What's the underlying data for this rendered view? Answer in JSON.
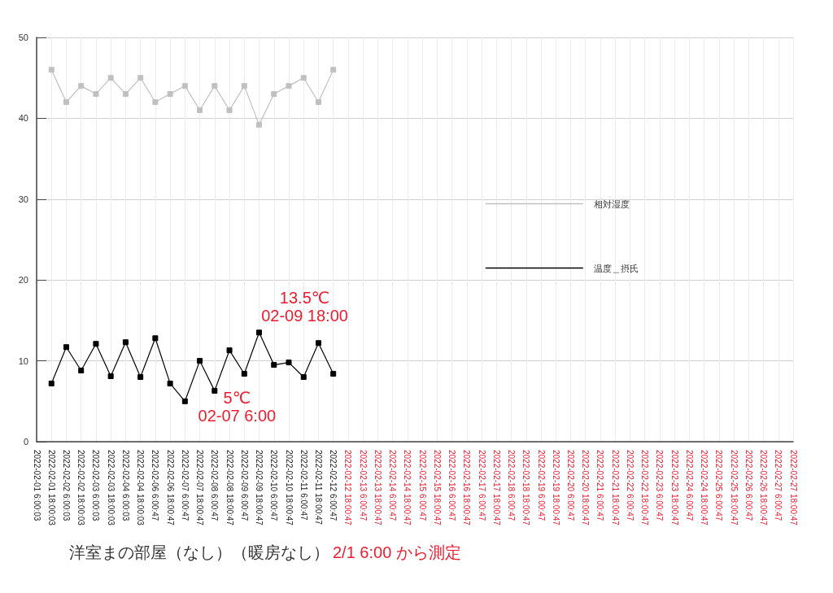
{
  "chart_data": {
    "type": "line",
    "title": "洋室まの部屋（なし）（暖房なし）",
    "subtitle": "2/1 6:00 から測定",
    "categories": [
      "2022-02-01 6:00:03",
      "2022-02-01 18:00:03",
      "2022-02-02 6:00:03",
      "2022-02-02 18:00:03",
      "2022-02-03 6:00:03",
      "2022-02-03 18:00:03",
      "2022-02-04 6:00:03",
      "2022-02-04 18:00:03",
      "2022-02-06 6:00:47",
      "2022-02-06 18:00:47",
      "2022-02-07 6:00:47",
      "2022-02-07 18:00:47",
      "2022-02-08 6:00:47",
      "2022-02-08 18:00:47",
      "2022-02-09 6:00:47",
      "2022-02-09 18:00:47",
      "2022-02-10 6:00:47",
      "2022-02-10 18:00:47",
      "2022-02-11 6:00:47",
      "2022-02-11 18:00:47",
      "2022-02-12 6:00:47",
      "2022-02-12 18:00:47",
      "2022-02-13 6:00:47",
      "2022-02-13 18:00:47",
      "2022-02-14 6:00:47",
      "2022-02-14 18:00:47",
      "2022-02-15 6:00:47",
      "2022-02-15 18:00:47",
      "2022-02-16 6:00:47",
      "2022-02-16 18:00:47",
      "2022-02-17 6:00:47",
      "2022-02-17 18:00:47",
      "2022-02-18 6:00:47",
      "2022-02-18 18:00:47",
      "2022-02-19 6:00:47",
      "2022-02-19 18:00:47",
      "2022-02-20 6:00:47",
      "2022-02-20 18:00:47",
      "2022-02-21 6:00:47",
      "2022-02-21 18:00:47",
      "2022-02-22 6:00:47",
      "2022-02-22 18:00:47",
      "2022-02-23 6:00:47",
      "2022-02-23 18:00:47",
      "2022-02-24 6:00:47",
      "2022-02-24 18:00:47",
      "2022-02-25 6:00:47",
      "2022-02-25 18:00:47",
      "2022-02-26 6:00:47",
      "2022-02-26 18:00:47",
      "2022-02-27 6:00:47",
      "2022-02-27 18:00:47"
    ],
    "series": [
      {
        "name": "相対湿度",
        "color": "#c0c0c0",
        "values": [
          null,
          46,
          42,
          44,
          43,
          45,
          43,
          45,
          42,
          43,
          44,
          41,
          44,
          41,
          44,
          39.2,
          43,
          44,
          45,
          42,
          46,
          null,
          null,
          null,
          null,
          null,
          null,
          null,
          null,
          null,
          null,
          null,
          null,
          null,
          null,
          null,
          null,
          null,
          null,
          null,
          null,
          null,
          null,
          null,
          null,
          null,
          null,
          null,
          null,
          null,
          null,
          null
        ]
      },
      {
        "name": "温度＿摂氏",
        "color": "#000000",
        "values": [
          null,
          7.2,
          11.7,
          8.8,
          12.1,
          8.1,
          12.3,
          8,
          12.8,
          7.2,
          5,
          10,
          6.3,
          11.3,
          8.4,
          13.5,
          9.5,
          9.8,
          8,
          12.2,
          8.4,
          null,
          null,
          null,
          null,
          null,
          null,
          null,
          null,
          null,
          null,
          null,
          null,
          null,
          null,
          null,
          null,
          null,
          null,
          null,
          null,
          null,
          null,
          null,
          null,
          null,
          null,
          null,
          null,
          null,
          null,
          null
        ]
      }
    ],
    "ylim": [
      0,
      50
    ],
    "yticks": [
      0,
      10,
      20,
      30,
      40,
      50
    ],
    "grid": true,
    "legend": "right",
    "marker": "square",
    "line_style": "solid",
    "annotations": [
      {
        "text": "13.5℃\n02-09 18:00",
        "x": "2022-02-09 18:00:47",
        "y": 13.5
      },
      {
        "text": "5℃\n02-07 6:00",
        "x": "2022-02-07 6:00:47",
        "y": 5
      }
    ]
  }
}
